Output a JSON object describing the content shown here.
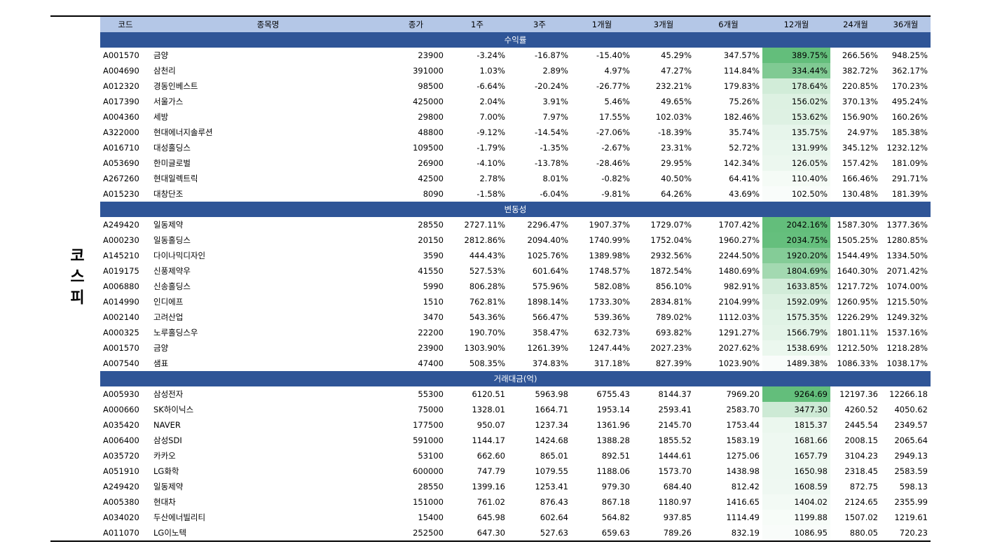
{
  "market": "코스피",
  "table": {
    "headers": [
      "코드",
      "종목명",
      "종가",
      "1주",
      "3주",
      "1개월",
      "3개월",
      "6개월",
      "12개월",
      "24개월",
      "36개월"
    ],
    "color_scale": {
      "column": 8,
      "color": "#63be7b"
    },
    "sections": [
      {
        "title": "수익률",
        "rows": [
          [
            "A001570",
            "금양",
            "23900",
            "-3.24%",
            "-16.87%",
            "-15.40%",
            "45.29%",
            "347.57%",
            "389.75%",
            "266.56%",
            "948.25%"
          ],
          [
            "A004690",
            "삼천리",
            "391000",
            "1.03%",
            "2.89%",
            "4.97%",
            "47.27%",
            "114.84%",
            "334.44%",
            "382.72%",
            "362.17%"
          ],
          [
            "A012320",
            "경동인베스트",
            "98500",
            "-6.64%",
            "-20.24%",
            "-26.77%",
            "232.21%",
            "179.83%",
            "178.64%",
            "220.85%",
            "170.23%"
          ],
          [
            "A017390",
            "서울가스",
            "425000",
            "2.04%",
            "3.91%",
            "5.46%",
            "49.65%",
            "75.26%",
            "156.02%",
            "370.13%",
            "495.24%"
          ],
          [
            "A004360",
            "세방",
            "29800",
            "7.00%",
            "7.97%",
            "17.55%",
            "102.03%",
            "182.46%",
            "153.62%",
            "156.90%",
            "160.26%"
          ],
          [
            "A322000",
            "현대에너지솔루션",
            "48800",
            "-9.12%",
            "-14.54%",
            "-27.06%",
            "-18.39%",
            "35.74%",
            "135.75%",
            "24.97%",
            "185.38%"
          ],
          [
            "A016710",
            "대성홀딩스",
            "109500",
            "-1.79%",
            "-1.35%",
            "-2.67%",
            "23.31%",
            "52.72%",
            "131.99%",
            "345.12%",
            "1232.12%"
          ],
          [
            "A053690",
            "한미글로벌",
            "26900",
            "-4.10%",
            "-13.78%",
            "-28.46%",
            "29.95%",
            "142.34%",
            "126.05%",
            "157.42%",
            "181.09%"
          ],
          [
            "A267260",
            "현대일렉트릭",
            "42500",
            "2.78%",
            "8.01%",
            "-0.82%",
            "40.50%",
            "64.41%",
            "110.40%",
            "166.46%",
            "291.71%"
          ],
          [
            "A015230",
            "대창단조",
            "8090",
            "-1.58%",
            "-6.04%",
            "-9.81%",
            "64.26%",
            "43.69%",
            "102.50%",
            "130.48%",
            "181.39%"
          ]
        ]
      },
      {
        "title": "변동성",
        "rows": [
          [
            "A249420",
            "일동제약",
            "28550",
            "2727.11%",
            "2296.47%",
            "1907.37%",
            "1729.07%",
            "1707.42%",
            "2042.16%",
            "1587.30%",
            "1377.36%"
          ],
          [
            "A000230",
            "일동홀딩스",
            "20150",
            "2812.86%",
            "2094.40%",
            "1740.99%",
            "1752.04%",
            "1960.27%",
            "2034.75%",
            "1505.25%",
            "1280.85%"
          ],
          [
            "A145210",
            "다이나믹디자인",
            "3590",
            "444.43%",
            "1025.76%",
            "1389.98%",
            "2932.56%",
            "2244.50%",
            "1920.20%",
            "1544.49%",
            "1334.50%"
          ],
          [
            "A019175",
            "신풍제약우",
            "41550",
            "527.53%",
            "601.64%",
            "1748.57%",
            "1872.54%",
            "1480.69%",
            "1804.69%",
            "1640.30%",
            "2071.42%"
          ],
          [
            "A006880",
            "신송홀딩스",
            "5990",
            "806.28%",
            "575.96%",
            "582.08%",
            "856.10%",
            "982.91%",
            "1633.85%",
            "1217.72%",
            "1074.00%"
          ],
          [
            "A014990",
            "인디에프",
            "1510",
            "762.81%",
            "1898.14%",
            "1733.30%",
            "2834.81%",
            "2104.99%",
            "1592.09%",
            "1260.95%",
            "1215.50%"
          ],
          [
            "A002140",
            "고려산업",
            "3470",
            "543.36%",
            "566.47%",
            "539.36%",
            "789.02%",
            "1112.03%",
            "1575.35%",
            "1226.29%",
            "1249.32%"
          ],
          [
            "A000325",
            "노루홀딩스우",
            "22200",
            "190.70%",
            "358.47%",
            "632.73%",
            "693.82%",
            "1291.27%",
            "1566.79%",
            "1801.11%",
            "1537.16%"
          ],
          [
            "A001570",
            "금양",
            "23900",
            "1303.90%",
            "1261.39%",
            "1247.44%",
            "2027.23%",
            "2027.62%",
            "1538.69%",
            "1212.50%",
            "1218.28%"
          ],
          [
            "A007540",
            "샘표",
            "47400",
            "508.35%",
            "374.83%",
            "317.18%",
            "827.39%",
            "1023.90%",
            "1489.38%",
            "1086.33%",
            "1038.17%"
          ]
        ]
      },
      {
        "title": "거래대금(억)",
        "rows": [
          [
            "A005930",
            "삼성전자",
            "55300",
            "6120.51",
            "5963.98",
            "6755.43",
            "8144.37",
            "7969.20",
            "9264.69",
            "12197.36",
            "12266.18"
          ],
          [
            "A000660",
            "SK하이닉스",
            "75000",
            "1328.01",
            "1664.71",
            "1953.14",
            "2593.41",
            "2583.70",
            "3477.30",
            "4260.52",
            "4050.62"
          ],
          [
            "A035420",
            "NAVER",
            "177500",
            "950.07",
            "1237.34",
            "1361.96",
            "2145.70",
            "1753.44",
            "1815.37",
            "2445.54",
            "2349.57"
          ],
          [
            "A006400",
            "삼성SDI",
            "591000",
            "1144.17",
            "1424.68",
            "1388.28",
            "1855.52",
            "1583.19",
            "1681.66",
            "2008.15",
            "2065.64"
          ],
          [
            "A035720",
            "카카오",
            "53100",
            "662.60",
            "865.01",
            "892.51",
            "1444.61",
            "1275.06",
            "1657.79",
            "3104.23",
            "2949.13"
          ],
          [
            "A051910",
            "LG화학",
            "600000",
            "747.79",
            "1079.55",
            "1188.06",
            "1573.70",
            "1438.98",
            "1650.98",
            "2318.45",
            "2583.59"
          ],
          [
            "A249420",
            "일동제약",
            "28550",
            "1399.16",
            "1253.41",
            "979.30",
            "684.40",
            "812.42",
            "1608.59",
            "872.75",
            "598.13"
          ],
          [
            "A005380",
            "현대차",
            "151000",
            "761.02",
            "876.43",
            "867.18",
            "1180.97",
            "1416.65",
            "1404.02",
            "2124.65",
            "2355.99"
          ],
          [
            "A034020",
            "두산에너빌리티",
            "15400",
            "645.98",
            "602.64",
            "564.82",
            "937.85",
            "1114.49",
            "1199.88",
            "1507.02",
            "1219.61"
          ],
          [
            "A011070",
            "LG이노텍",
            "252500",
            "647.30",
            "527.63",
            "659.63",
            "789.26",
            "832.19",
            "1086.95",
            "880.05",
            "720.23"
          ]
        ]
      }
    ]
  }
}
